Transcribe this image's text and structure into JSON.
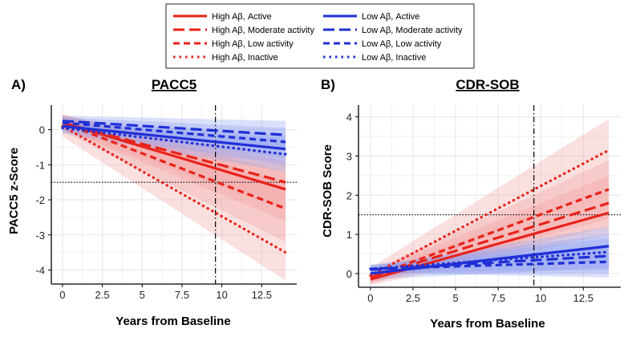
{
  "legend": {
    "entries": [
      {
        "label": "High Aβ, Active",
        "color": "#e8231a",
        "style": "solid"
      },
      {
        "label": "High Aβ, Moderate activity",
        "color": "#e8231a",
        "style": "longdash"
      },
      {
        "label": "High Aβ, Low activity",
        "color": "#e8231a",
        "style": "dash"
      },
      {
        "label": "High Aβ, Inactive",
        "color": "#e8231a",
        "style": "dot"
      },
      {
        "label": "Low Aβ, Active",
        "color": "#1f2fd6",
        "style": "solid"
      },
      {
        "label": "Low Aβ, Moderate activity",
        "color": "#1f2fd6",
        "style": "longdash"
      },
      {
        "label": "Low Aβ, Low activity",
        "color": "#1f2fd6",
        "style": "dash"
      },
      {
        "label": "Low Aβ, Inactive",
        "color": "#1f2fd6",
        "style": "dot"
      }
    ]
  },
  "colors": {
    "high": "#e8231a",
    "low": "#1f2fd6",
    "high_band": "#f4a0a0",
    "low_band": "#8f9ff0",
    "grid": "#e6e6e6"
  },
  "chart_data": [
    {
      "type": "line",
      "panel_label": "A)",
      "title": "PACC5",
      "xlabel": "Years from Baseline",
      "ylabel": "PACC5 z-Score",
      "xlim": [
        -0.7,
        14.7
      ],
      "ylim": [
        -4.4,
        0.7
      ],
      "xticks": [
        0,
        2.5,
        5,
        7.5,
        10,
        12.5
      ],
      "xtick_labels": [
        "0",
        "2.5",
        "5",
        "7.5",
        "10",
        "12.5"
      ],
      "yticks": [
        0,
        -1,
        -2,
        -3,
        -4
      ],
      "ytick_labels": [
        "0",
        "-1",
        "-2",
        "-3",
        "-4"
      ],
      "vline_x": 9.6,
      "hline_y": -1.5,
      "grid": true,
      "series": [
        {
          "name": "High Aβ, Active",
          "group": "high",
          "style": "solid",
          "x": [
            0,
            14
          ],
          "y": [
            0.2,
            -1.7
          ],
          "lower": [
            0.0,
            -2.6
          ],
          "upper": [
            0.4,
            -0.9
          ]
        },
        {
          "name": "High Aβ, Moderate activity",
          "group": "high",
          "style": "longdash",
          "x": [
            0,
            14
          ],
          "y": [
            0.2,
            -1.5
          ],
          "lower": [
            0.0,
            -2.3
          ],
          "upper": [
            0.4,
            -0.7
          ]
        },
        {
          "name": "High Aβ, Low activity",
          "group": "high",
          "style": "dash",
          "x": [
            0,
            14
          ],
          "y": [
            0.2,
            -2.25
          ],
          "lower": [
            -0.05,
            -3.2
          ],
          "upper": [
            0.45,
            -1.2
          ]
        },
        {
          "name": "High Aβ, Inactive",
          "group": "high",
          "style": "dot",
          "x": [
            0,
            14
          ],
          "y": [
            0.1,
            -3.5
          ],
          "lower": [
            -0.2,
            -4.3
          ],
          "upper": [
            0.4,
            -1.5
          ]
        },
        {
          "name": "Low Aβ, Active",
          "group": "low",
          "style": "solid",
          "x": [
            0,
            14
          ],
          "y": [
            0.1,
            -0.55
          ],
          "lower": [
            -0.05,
            -1.0
          ],
          "upper": [
            0.25,
            -0.15
          ]
        },
        {
          "name": "Low Aβ, Moderate activity",
          "group": "low",
          "style": "longdash",
          "x": [
            0,
            14
          ],
          "y": [
            0.25,
            -0.15
          ],
          "lower": [
            0.1,
            -0.6
          ],
          "upper": [
            0.4,
            0.25
          ]
        },
        {
          "name": "Low Aβ, Low activity",
          "group": "low",
          "style": "dash",
          "x": [
            0,
            14
          ],
          "y": [
            0.2,
            -0.35
          ],
          "lower": [
            0.05,
            -0.8
          ],
          "upper": [
            0.35,
            0.05
          ]
        },
        {
          "name": "Low Aβ, Inactive",
          "group": "low",
          "style": "dot",
          "x": [
            0,
            14
          ],
          "y": [
            0.05,
            -0.7
          ],
          "lower": [
            -0.1,
            -1.2
          ],
          "upper": [
            0.2,
            -0.25
          ]
        }
      ]
    },
    {
      "type": "line",
      "panel_label": "B)",
      "title": "CDR-SOB",
      "xlabel": "Years from Baseline",
      "ylabel": "CDR-SOB Score",
      "xlim": [
        -0.7,
        14.7
      ],
      "ylim": [
        -0.35,
        4.3
      ],
      "xticks": [
        0,
        2.5,
        5,
        7.5,
        10,
        12.5
      ],
      "xtick_labels": [
        "0",
        "2.5",
        "5",
        "7.5",
        "10",
        "12.5"
      ],
      "yticks": [
        0,
        1,
        2,
        3,
        4
      ],
      "ytick_labels": [
        "0",
        "1",
        "2",
        "3",
        "4"
      ],
      "vline_x": 9.6,
      "hline_y": 1.5,
      "grid": true,
      "series": [
        {
          "name": "High Aβ, Active",
          "group": "high",
          "style": "solid",
          "x": [
            0,
            14
          ],
          "y": [
            -0.15,
            1.55
          ],
          "lower": [
            -0.3,
            1.0
          ],
          "upper": [
            0.0,
            2.2
          ]
        },
        {
          "name": "High Aβ, Moderate activity",
          "group": "high",
          "style": "longdash",
          "x": [
            0,
            14
          ],
          "y": [
            -0.1,
            1.8
          ],
          "lower": [
            -0.25,
            1.2
          ],
          "upper": [
            0.05,
            2.5
          ]
        },
        {
          "name": "High Aβ, Low activity",
          "group": "high",
          "style": "dash",
          "x": [
            0,
            14
          ],
          "y": [
            -0.1,
            2.15
          ],
          "lower": [
            -0.25,
            1.4
          ],
          "upper": [
            0.05,
            2.9
          ]
        },
        {
          "name": "High Aβ, Inactive",
          "group": "high",
          "style": "dot",
          "x": [
            0,
            14
          ],
          "y": [
            -0.05,
            3.15
          ],
          "lower": [
            -0.25,
            2.2
          ],
          "upper": [
            0.15,
            3.95
          ]
        },
        {
          "name": "Low Aβ, Active",
          "group": "low",
          "style": "solid",
          "x": [
            0,
            14
          ],
          "y": [
            0.0,
            0.7
          ],
          "lower": [
            -0.15,
            0.15
          ],
          "upper": [
            0.15,
            1.2
          ]
        },
        {
          "name": "Low Aβ, Moderate activity",
          "group": "low",
          "style": "longdash",
          "x": [
            0,
            14
          ],
          "y": [
            0.1,
            0.45
          ],
          "lower": [
            0.0,
            0.0
          ],
          "upper": [
            0.2,
            0.9
          ]
        },
        {
          "name": "Low Aβ, Low activity",
          "group": "low",
          "style": "dash",
          "x": [
            0,
            14
          ],
          "y": [
            0.12,
            0.3
          ],
          "lower": [
            0.02,
            -0.1
          ],
          "upper": [
            0.22,
            0.7
          ]
        },
        {
          "name": "Low Aβ, Inactive",
          "group": "low",
          "style": "dot",
          "x": [
            0,
            14
          ],
          "y": [
            0.12,
            0.55
          ],
          "lower": [
            0.02,
            0.1
          ],
          "upper": [
            0.22,
            1.0
          ]
        }
      ]
    }
  ]
}
